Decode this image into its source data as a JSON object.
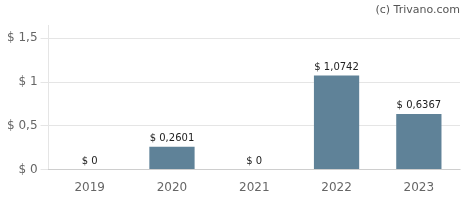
{
  "chart_data": {
    "type": "bar",
    "categories": [
      "2019",
      "2020",
      "2021",
      "2022",
      "2023"
    ],
    "values": [
      0,
      0.2601,
      0,
      1.0742,
      0.6367
    ],
    "value_labels": [
      "$ 0",
      "$ 0,2601",
      "$ 0",
      "$ 1,0742",
      "$ 0,6367"
    ],
    "data_labels": true,
    "color": "#5f8298",
    "ylim": [
      0,
      1.65
    ],
    "yticks": [
      {
        "value": 0,
        "label": "$ 0"
      },
      {
        "value": 0.5,
        "label": "$ 0,5"
      },
      {
        "value": 1.0,
        "label": "$ 1"
      },
      {
        "value": 1.5,
        "label": "$ 1,5"
      }
    ],
    "grid": true,
    "annotation": "(c) Trivano.com"
  }
}
